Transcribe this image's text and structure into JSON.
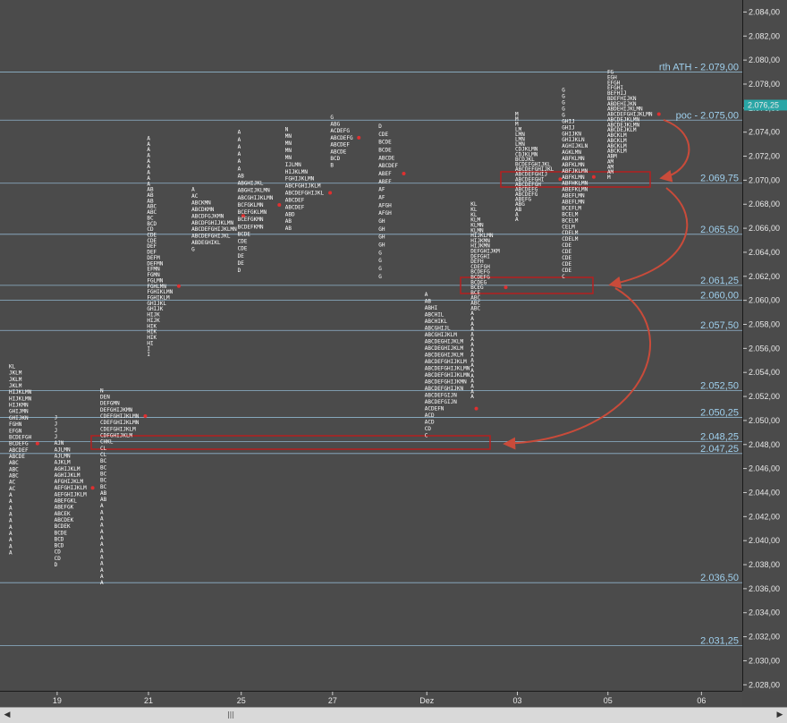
{
  "chart_data": {
    "type": "market-profile",
    "y_range": [
      2027.5,
      2085.0
    ],
    "y_ticks": [
      "2.028,00",
      "2.030,00",
      "2.032,00",
      "2.034,00",
      "2.036,00",
      "2.038,00",
      "2.040,00",
      "2.042,00",
      "2.044,00",
      "2.046,00",
      "2.048,00",
      "2.050,00",
      "2.052,00",
      "2.054,00",
      "2.056,00",
      "2.058,00",
      "2.060,00",
      "2.062,00",
      "2.064,00",
      "2.066,00",
      "2.068,00",
      "2.070,00",
      "2.072,00",
      "2.074,00",
      "2.076,00",
      "2.078,00",
      "2.080,00",
      "2.082,00",
      "2.084,00"
    ],
    "x_labels": [
      {
        "label": "19",
        "pos": 0.077
      },
      {
        "label": "21",
        "pos": 0.2
      },
      {
        "label": "25",
        "pos": 0.325
      },
      {
        "label": "27",
        "pos": 0.448
      },
      {
        "label": "Dez",
        "pos": 0.575
      },
      {
        "label": "03",
        "pos": 0.697
      },
      {
        "label": "05",
        "pos": 0.819
      },
      {
        "label": "06",
        "pos": 0.945
      }
    ],
    "levels": [
      {
        "value": 2079.0,
        "label": "rth ATH - 2.079,00"
      },
      {
        "value": 2075.0,
        "label": "poc - 2.075,00"
      },
      {
        "value": 2069.75,
        "label": "2.069,75"
      },
      {
        "value": 2065.5,
        "label": "2.065,50"
      },
      {
        "value": 2061.25,
        "label": "2.061,25"
      },
      {
        "value": 2060.0,
        "label": "2.060,00"
      },
      {
        "value": 2057.5,
        "label": "2.057,50"
      },
      {
        "value": 2052.5,
        "label": "2.052,50"
      },
      {
        "value": 2050.25,
        "label": "2.050,25"
      },
      {
        "value": 2048.25,
        "label": "2.048,25"
      },
      {
        "value": 2047.25,
        "label": "2.047,25"
      },
      {
        "value": 2036.5,
        "label": "2.036,50"
      },
      {
        "value": 2031.25,
        "label": "2.031,25"
      }
    ],
    "current_price": {
      "value": 2076.25,
      "label": "2.076,25"
    },
    "profiles": [
      {
        "pos": 0.012,
        "high": 2054.5,
        "low": 2039.0,
        "poc": 2048.25,
        "rows": [
          "KL",
          "JKLM",
          "JKLM",
          "JKLM",
          "HIJKLMN",
          "HIJKLMN",
          "HIJKMN",
          "GHIJMN",
          "GHIJKN",
          "FGHN",
          "EFGN",
          "BCDEFGH",
          "BCDEFG",
          "ABCDEF",
          "ABCDE",
          "ABC",
          "ABC",
          "ABC",
          "AC",
          "AC",
          "A",
          "A",
          "A",
          "A",
          "A",
          "A",
          "A",
          "A",
          "A",
          "A"
        ]
      },
      {
        "pos": 0.073,
        "high": 2050.25,
        "low": 2038.0,
        "poc": 2044.5,
        "rows": [
          "J",
          "J",
          "J",
          "J",
          "AJN",
          "AJLMN",
          "AJLMN",
          "AJKLM",
          "AGHIJKLM",
          "AGHIJKLM",
          "AFGHIJKLM",
          "AEFGHIJKLM",
          "AEFGHIJKLM",
          "ABEFGKL",
          "ABEFGK",
          "ABCEK",
          "ABCDEK",
          "BCDEK",
          "BCDE",
          "BCD",
          "BCD",
          "CD",
          "CD",
          "D"
        ]
      },
      {
        "pos": 0.135,
        "high": 2052.5,
        "low": 2036.5,
        "poc": 2050.25,
        "rows": [
          "N",
          "DEN",
          "DEFGMN",
          "DEFGHIJKMN",
          "CDEFGHIJKLMN",
          "CDEFGHIJKLMN",
          "CDEFGHIJKLM",
          "CDFGHIJKLM",
          "CHKL",
          "CL",
          "CL",
          "BC",
          "BC",
          "BC",
          "BC",
          "BC",
          "AB",
          "AB",
          "A",
          "A",
          "A",
          "A",
          "A",
          "A",
          "A",
          "A",
          "A",
          "A",
          "A",
          "A",
          "A"
        ]
      },
      {
        "pos": 0.198,
        "high": 2073.5,
        "low": 2055.5,
        "poc": 2061.25,
        "rows": [
          "A",
          "A",
          "A",
          "A",
          "A",
          "A",
          "A",
          "A",
          "A",
          "AB",
          "AB",
          "AB",
          "ABC",
          "ABC",
          "BC",
          "BCD",
          "CD",
          "CDE",
          "CDE",
          "DEF",
          "DEF",
          "DEFM",
          "DEFMN",
          "EFMN",
          "FGMN",
          "FGLMN",
          "FGHLMN",
          "FGHIKLMN",
          "FGHIKLM",
          "GHIJKL",
          "GHIJK",
          "HIJK",
          "HIJK",
          "HIK",
          "HIK",
          "HIK",
          "HI",
          "I",
          "I"
        ]
      },
      {
        "pos": 0.258,
        "high": 2069.25,
        "low": 2064.25,
        "poc": 2067.25,
        "rows": [
          "A",
          "AC",
          "ABCKMN",
          "ABCDKMN",
          "ABCDFGJKMN",
          "ABCDFGHIJKLMN",
          "ABCDEFGHIJKLMN",
          "ABCDEFGHIJKL",
          "ABDEGHIKL",
          "G"
        ]
      },
      {
        "pos": 0.32,
        "high": 2074.0,
        "low": 2062.5,
        "poc": 2068.0,
        "rows": [
          "A",
          "A",
          "A",
          "A",
          "A",
          "A",
          "AB",
          "ABGHIJKL",
          "ABGHIJKLMN",
          "ABCGHIJKLMN",
          "BCFGKLMN",
          "BCEFGKLMN",
          "BCEFGKMN",
          "BCDEFKMN",
          "BCDE",
          "CDE",
          "CDE",
          "DE",
          "DE",
          "D"
        ]
      },
      {
        "pos": 0.384,
        "high": 2074.25,
        "low": 2066.0,
        "poc": 2069.0,
        "rows": [
          "N",
          "MN",
          "MN",
          "MN",
          "MN",
          "IJLMN",
          "HIJKLMN",
          "FGHIJKLMN",
          "ABCFGHIJKLM",
          "ABCDEFGHIJKL",
          "ABCDEF",
          "ABCDEF",
          "ABD",
          "AB",
          "AB"
        ]
      },
      {
        "pos": 0.445,
        "high": 2075.25,
        "low": 2071.25,
        "poc": 2073.75,
        "rows": [
          "G",
          "ABG",
          "ACDEFG",
          "ABCDEFG",
          "ABCDEF",
          "ABCDE",
          "BCD",
          "B"
        ]
      },
      {
        "pos": 0.51,
        "high": 2074.5,
        "low": 2062.0,
        "poc": 2070.5,
        "rows": [
          "D",
          "CDE",
          "BCDE",
          "BCDE",
          "ABCDE",
          "ABCDEF",
          "ABEF",
          "ABEF",
          "AF",
          "AF",
          "AFGH",
          "AFGH",
          "GH",
          "GH",
          "GH",
          "GH",
          "G",
          "G",
          "G",
          "G"
        ]
      },
      {
        "pos": 0.572,
        "high": 2060.5,
        "low": 2048.75,
        "poc": 2051.0,
        "rows": [
          "A",
          "AB",
          "ABHI",
          "ABCHIL",
          "ABCHIKL",
          "ABCGHIJL",
          "ABCGHIJKLM",
          "ABCDEGHIJKLM",
          "ABCDEGHIJKLM",
          "ABCDEGHIJKLM",
          "ABCDEFGHIJKLM",
          "ABCDEFGHIJKLMN",
          "ABCDEFGHIJKLMN",
          "ABCDEFGHIJKMN",
          "ABCDEFGHIJKN",
          "ABCDEFGIJN",
          "ABCDEFGIJN",
          "ACDEFN",
          "ACD",
          "ACD",
          "CD",
          "C"
        ]
      },
      {
        "pos": 0.634,
        "high": 2068.0,
        "low": 2052.0,
        "poc": 2061.0,
        "rows": [
          "KL",
          "KL",
          "KL",
          "KLM",
          "KLMN",
          "KLMN",
          "HIJKLMN",
          "HIJKMN",
          "HIJKMN",
          "DEFGHIJKM",
          "DEFGHI",
          "DEFH",
          "CDEFGH",
          "BCDEFG",
          "BCDEFG",
          "BCDEG",
          "BCEG",
          "BCE",
          "ABC",
          "ABC",
          "ABC",
          "A",
          "A",
          "A",
          "A",
          "A",
          "A",
          "A",
          "A",
          "A",
          "A",
          "A",
          "A",
          "A",
          "A",
          "A",
          "A",
          "A"
        ]
      },
      {
        "pos": 0.694,
        "high": 2075.5,
        "low": 2066.75,
        "poc": 2070.25,
        "rows": [
          "M",
          "M",
          "M",
          "LM",
          "LMN",
          "LMN",
          "LMN",
          "CDJKLMN",
          "CDJKLMN",
          "BCDJKL",
          "BCDEFGHIJKL",
          "ABCDEFGHIJKL",
          "ABCDEFGHIJ",
          "ABCDEFGHI",
          "ABCDEFGH",
          "ABCDEFG",
          "ABCDEFG",
          "ABEFG",
          "ABG",
          "AB",
          "A",
          "A"
        ]
      },
      {
        "pos": 0.757,
        "high": 2077.5,
        "low": 2062.0,
        "poc": 2070.5,
        "rows": [
          "G",
          "G",
          "G",
          "G",
          "G",
          "GHIJ",
          "GHIJ",
          "GHIJKN",
          "GHIJKLN",
          "AGHIJKLN",
          "AGKLMN",
          "ABFKLMN",
          "ABFKLMN",
          "ABFJKLMN",
          "ABFKLMN",
          "ABFHKLMN",
          "ABEFKLMN",
          "ABEFLMN",
          "ABEFLMN",
          "BCEFLM",
          "BCELM",
          "BCELM",
          "CELM",
          "CDELM",
          "CDELM",
          "CDE",
          "CDE",
          "CDE",
          "CDE",
          "CDE",
          "C"
        ]
      },
      {
        "pos": 0.818,
        "high": 2079.0,
        "low": 2070.25,
        "poc": 2075.5,
        "rows": [
          "FG",
          "EGH",
          "EFGH",
          "EFGHI",
          "BEFHIJ",
          "BDEFHIJKN",
          "ABDEHIJKN",
          "ABDEHIJKLMN",
          "ABCDEFGHIJKLMN",
          "ABCDEJKLMN",
          "ABCDEJKLMN",
          "ABCDEJKLM",
          "ABCKLM",
          "ABCKLM",
          "ABCKLM",
          "ABCKLM",
          "ABM",
          "AM",
          "AM",
          "AM",
          "M"
        ]
      }
    ]
  }
}
